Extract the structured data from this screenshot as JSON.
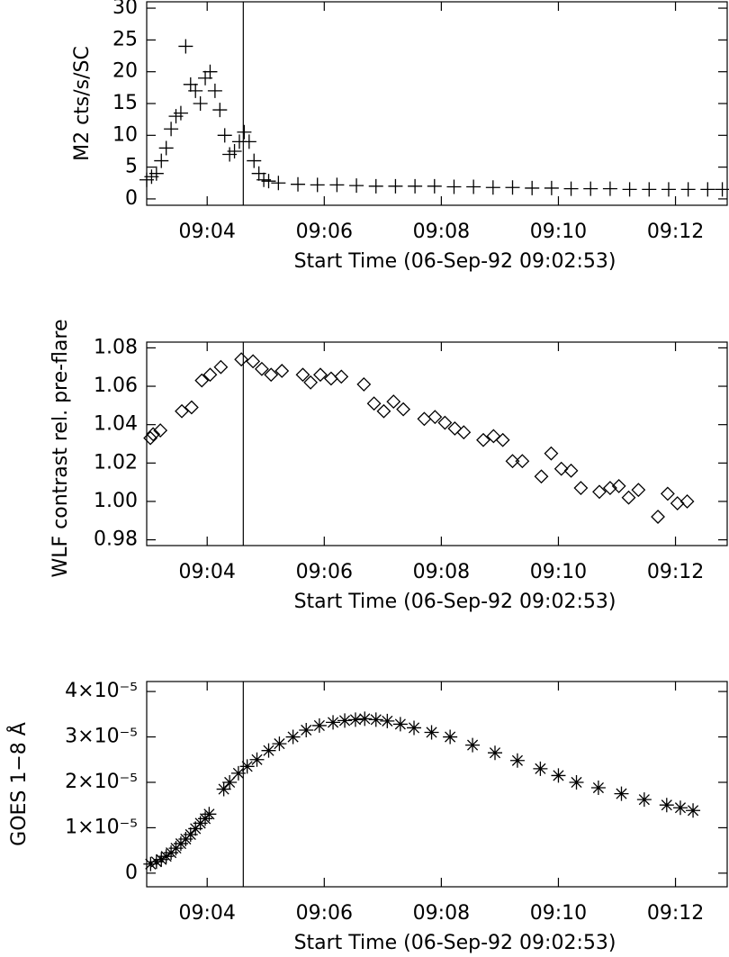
{
  "chart_data": [
    {
      "type": "scatter",
      "marker": "plus",
      "color": "#000000",
      "y_label": "M2 cts/s/SC",
      "x_label": "Start Time (06-Sep-92 09:02:53)",
      "xlim": [
        5,
        600
      ],
      "ylim": [
        -1,
        31
      ],
      "xticks": [
        {
          "value": 67,
          "label": "09:04"
        },
        {
          "value": 187,
          "label": "09:06"
        },
        {
          "value": 307,
          "label": "09:08"
        },
        {
          "value": 427,
          "label": "09:10"
        },
        {
          "value": 547,
          "label": "09:12"
        }
      ],
      "yticks": [
        0,
        5,
        10,
        15,
        20,
        25,
        30
      ],
      "vline": 104,
      "x": [
        5,
        10,
        15,
        20,
        25,
        30,
        35,
        40,
        45,
        50,
        55,
        60,
        65,
        70,
        75,
        80,
        85,
        90,
        95,
        100,
        105,
        110,
        115,
        120,
        125,
        130,
        140,
        160,
        180,
        200,
        220,
        240,
        260,
        280,
        300,
        320,
        340,
        360,
        380,
        400,
        420,
        440,
        460,
        480,
        500,
        520,
        540,
        560,
        580,
        595
      ],
      "values": [
        3,
        3.5,
        4,
        6,
        8,
        11,
        13,
        13.5,
        24,
        18,
        17,
        15,
        19,
        20,
        17,
        14,
        10,
        7,
        7.5,
        9,
        10.5,
        9,
        6,
        4,
        3,
        2.8,
        2.5,
        2.3,
        2.2,
        2.2,
        2.1,
        2,
        2,
        2,
        2,
        1.9,
        1.9,
        1.8,
        1.8,
        1.7,
        1.7,
        1.6,
        1.6,
        1.6,
        1.5,
        1.5,
        1.5,
        1.5,
        1.5,
        1.5
      ]
    },
    {
      "type": "scatter",
      "marker": "diamond",
      "color": "#000000",
      "y_label": "WLF contrast rel. pre-flare",
      "x_label": "Start Time (06-Sep-92 09:02:53)",
      "xlim": [
        5,
        600
      ],
      "ylim": [
        0.977,
        1.083
      ],
      "xticks": [
        {
          "value": 67,
          "label": "09:04"
        },
        {
          "value": 187,
          "label": "09:06"
        },
        {
          "value": 307,
          "label": "09:08"
        },
        {
          "value": 427,
          "label": "09:10"
        },
        {
          "value": 547,
          "label": "09:12"
        }
      ],
      "yticks": [
        0.98,
        {
          "value": 1,
          "label": "1.00"
        },
        1.02,
        1.04,
        1.06,
        1.08
      ],
      "vline": 104,
      "x": [
        8.8,
        11.6,
        19,
        41,
        51,
        61.5,
        70,
        81,
        102,
        114,
        123,
        132.5,
        143.6,
        165,
        173,
        183,
        194,
        204.5,
        227.6,
        238,
        248,
        258,
        268,
        289.5,
        300.5,
        310.7,
        320.8,
        330,
        350,
        360.5,
        370,
        380,
        390,
        409.5,
        419.6,
        430,
        440,
        450,
        469,
        480,
        489,
        499,
        509,
        529,
        539,
        549,
        559
      ],
      "values": [
        1.033,
        1.035,
        1.037,
        1.047,
        1.049,
        1.063,
        1.066,
        1.07,
        1.074,
        1.073,
        1.069,
        1.066,
        1.068,
        1.066,
        1.062,
        1.066,
        1.064,
        1.065,
        1.061,
        1.051,
        1.047,
        1.052,
        1.048,
        1.043,
        1.044,
        1.041,
        1.038,
        1.036,
        1.032,
        1.034,
        1.032,
        1.021,
        1.021,
        1.013,
        1.025,
        1.017,
        1.016,
        1.007,
        1.005,
        1.007,
        1.008,
        1.002,
        1.006,
        0.992,
        1.004,
        0.999,
        1.0
      ]
    },
    {
      "type": "scatter",
      "marker": "asterisk",
      "color": "#000000",
      "y_label": "GOES 1−8 Å",
      "x_label": "Start Time (06-Sep-92 09:02:53)",
      "xlim": [
        5,
        600
      ],
      "ylim": [
        -3e-06,
        4.22e-05
      ],
      "xticks": [
        {
          "value": 67,
          "label": "09:04"
        },
        {
          "value": 187,
          "label": "09:06"
        },
        {
          "value": 307,
          "label": "09:08"
        },
        {
          "value": 427,
          "label": "09:10"
        },
        {
          "value": 547,
          "label": "09:12"
        }
      ],
      "yticks": [
        0,
        {
          "value": 1e-05,
          "label": "1×10⁻⁵"
        },
        {
          "value": 2e-05,
          "label": "2×10⁻⁵"
        },
        {
          "value": 3e-05,
          "label": "3×10⁻⁵"
        },
        {
          "value": 4e-05,
          "label": "4×10⁻⁵"
        }
      ],
      "vline": 104,
      "x": [
        9,
        15,
        20,
        25,
        30,
        35,
        40,
        45,
        50,
        55,
        60,
        65,
        69,
        84,
        90,
        99,
        108,
        118,
        130,
        141,
        155,
        168.5,
        182,
        196,
        208,
        219,
        228.5,
        240,
        251.6,
        265,
        279,
        297,
        316,
        339,
        362,
        385,
        408.5,
        427,
        445.5,
        468,
        491.6,
        515,
        538,
        552,
        565
      ],
      "values": [
        2e-06,
        2.5e-06,
        3e-06,
        3.7e-06,
        4.5e-06,
        5.5e-06,
        6.5e-06,
        7.5e-06,
        8.5e-06,
        9.8e-06,
        1.1e-05,
        1.2e-05,
        1.3e-05,
        1.85e-05,
        2e-05,
        2.2e-05,
        2.35e-05,
        2.5e-05,
        2.7e-05,
        2.85e-05,
        3e-05,
        3.15e-05,
        3.25e-05,
        3.32e-05,
        3.36e-05,
        3.38e-05,
        3.4e-05,
        3.38e-05,
        3.35e-05,
        3.28e-05,
        3.2e-05,
        3.1e-05,
        3e-05,
        2.82e-05,
        2.65e-05,
        2.48e-05,
        2.3e-05,
        2.15e-05,
        2e-05,
        1.88e-05,
        1.75e-05,
        1.62e-05,
        1.5e-05,
        1.44e-05,
        1.38e-05
      ]
    }
  ]
}
